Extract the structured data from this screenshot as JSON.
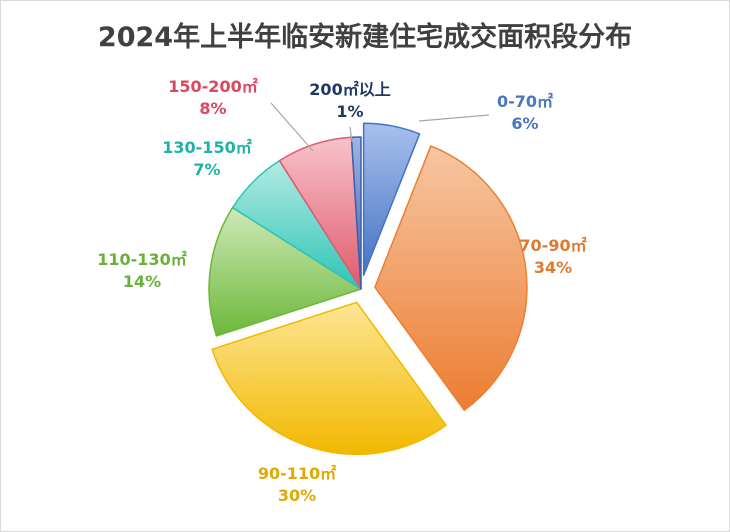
{
  "chart_data": {
    "type": "pie",
    "title": "2024年上半年临安新建住宅成交面积段分布",
    "slices": [
      {
        "label": "0-70㎡",
        "value": 6,
        "value_label": "6%",
        "color": "#4472c4",
        "color_light": "#a9c0ec",
        "exploded": true
      },
      {
        "label": "70-90㎡",
        "value": 34,
        "value_label": "34%",
        "color": "#ed7d31",
        "color_light": "#f6c6a2",
        "exploded": true
      },
      {
        "label": "90-110㎡",
        "value": 30,
        "value_label": "30%",
        "color": "#f2b800",
        "color_light": "#fde694",
        "exploded": true
      },
      {
        "label": "110-130㎡",
        "value": 14,
        "value_label": "14%",
        "color": "#6cb83a",
        "color_light": "#cfe9b8",
        "exploded": false
      },
      {
        "label": "130-150㎡",
        "value": 7,
        "value_label": "7%",
        "color": "#2ec4b6",
        "color_light": "#b2ebe4",
        "exploded": false
      },
      {
        "label": "150-200㎡",
        "value": 8,
        "value_label": "8%",
        "color": "#e05a6c",
        "color_light": "#f7c3cb",
        "exploded": false
      },
      {
        "label": "200㎡以上",
        "value": 1,
        "value_label": "1%",
        "color": "#3a5fae",
        "color_light": "#9fb5e2",
        "exploded": false
      }
    ],
    "label_colors": {
      "0-70㎡": "#4a76c0",
      "70-90㎡": "#e07a30",
      "90-110㎡": "#e0aa00",
      "110-130㎡": "#6ab03a",
      "130-150㎡": "#20b2a6",
      "150-200㎡": "#d9485e",
      "200㎡以上": "#1f3864"
    },
    "legend": "none"
  }
}
